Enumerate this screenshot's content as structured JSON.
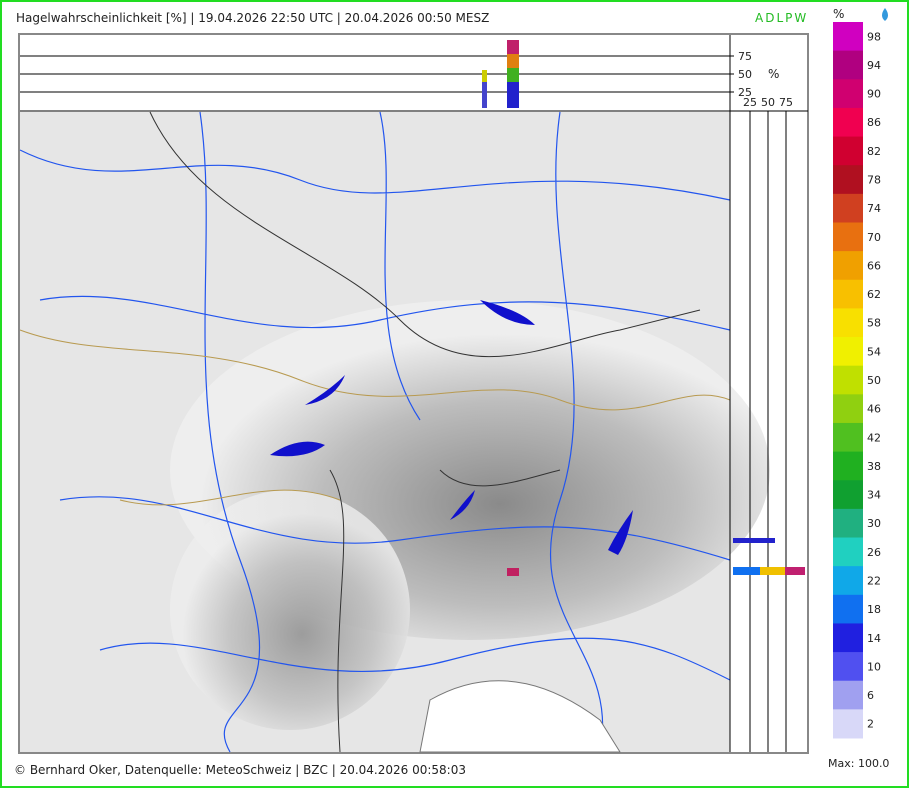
{
  "header": {
    "title": "Hagelwahrscheinlichkeit [%] | 19.04.2026 22:50 UTC | 20.04.2026 00:50 MESZ",
    "brand": "ADLPW"
  },
  "top_strip": {
    "ticks": [
      "75",
      "50",
      "25"
    ],
    "unit": "%"
  },
  "side_strip": {
    "ticks": [
      "25",
      "50",
      "75"
    ]
  },
  "legend": {
    "unit": "%",
    "labels": [
      "98",
      "94",
      "90",
      "86",
      "82",
      "78",
      "74",
      "70",
      "66",
      "62",
      "58",
      "54",
      "50",
      "46",
      "42",
      "38",
      "34",
      "30",
      "26",
      "22",
      "18",
      "14",
      "10",
      "6",
      "2"
    ],
    "colors": [
      "#d000c0",
      "#b00080",
      "#d00070",
      "#f00050",
      "#d00030",
      "#b01020",
      "#d04020",
      "#e87010",
      "#f0a000",
      "#f8c000",
      "#f8e000",
      "#f0f000",
      "#c0e000",
      "#90d010",
      "#50c020",
      "#20b020",
      "#10a030",
      "#20b080",
      "#20d0c0",
      "#10a8e8",
      "#1070f0",
      "#2020e0",
      "#5050f0",
      "#a0a0f0",
      "#d8d8f8"
    ],
    "max": "Max: 100.0"
  },
  "footer": "© Bernhard Oker, Datenquelle: MeteoSchweiz | BZC | 20.04.2026 00:58:03"
}
